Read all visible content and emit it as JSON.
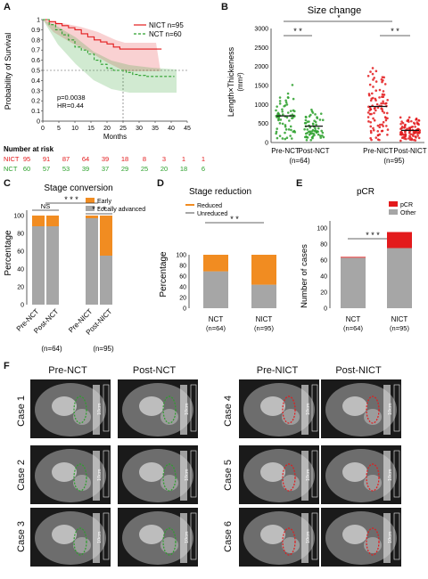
{
  "panels": {
    "A": "A",
    "B": "B",
    "C": "C",
    "D": "D",
    "E": "E",
    "F": "F"
  },
  "colors": {
    "nict": "#e31a1c",
    "nct": "#2ca02c",
    "early": "#f18c21",
    "locally_advanced": "#a6a6a6",
    "pcr": "#e31a1c",
    "other": "#a6a6a6"
  },
  "km": {
    "ylabel": "Probability of Survival",
    "xlabel": "Months",
    "legend_nict": "NICT n=95",
    "legend_nct": "NCT  n=60",
    "p_text": "p=0.0038",
    "hr_text": "HR=0.44",
    "yticks": [
      "0",
      "0.1",
      "0.2",
      "0.3",
      "0.4",
      "0.5",
      "0.6",
      "0.7",
      "0.8",
      "0.9",
      "1"
    ],
    "xticks": [
      "0",
      "5",
      "10",
      "15",
      "20",
      "25",
      "30",
      "35",
      "40",
      "45"
    ],
    "at_risk_title": "Number at risk",
    "risk_label_nict": "NICT",
    "risk_label_nct": "NCT",
    "risk_nict": [
      "95",
      "91",
      "87",
      "64",
      "39",
      "18",
      "8",
      "3",
      "1",
      "1"
    ],
    "risk_nct": [
      "60",
      "57",
      "53",
      "39",
      "37",
      "29",
      "25",
      "20",
      "18",
      "6"
    ]
  },
  "size_change": {
    "title": "Size change",
    "ylabel": "Length×Thickeness",
    "yunit": "(mm²)",
    "yticks": [
      "0",
      "500",
      "1000",
      "1500",
      "2000",
      "2500",
      "3000"
    ],
    "groups": [
      "Pre-NCT",
      "Post-NCT",
      "Pre-NICT",
      "Post-NICT"
    ],
    "n_nct": "(n=64)",
    "n_nict": "(n=95)",
    "sig_outer": "*",
    "sig_inner": "* *"
  },
  "stage_conversion": {
    "title": "Stage conversion",
    "ylabel": "Percentage",
    "yticks": [
      "0",
      "20",
      "40",
      "60",
      "80",
      "100"
    ],
    "legend_early": "Early",
    "legend_la": "Locally advanced",
    "groups": [
      "Pre-NCT",
      "Post-NCT",
      "Pre-NICT",
      "Post-NICT"
    ],
    "n_nct": "(n=64)",
    "n_nict": "(n=95)",
    "sig_ns": "NS",
    "sig_top": "* * *",
    "sig_right": "* * *"
  },
  "stage_reduction": {
    "title": "Stage reduction",
    "ylabel": "Percentage",
    "yticks": [
      "0",
      "20",
      "40",
      "60",
      "80",
      "100"
    ],
    "legend_reduced": "Reduced",
    "legend_unreduced": "Unreduced",
    "groups": [
      "NCT",
      "NICT"
    ],
    "n": [
      "(n=64)",
      "(n=95)"
    ],
    "sig": "* *"
  },
  "pcr": {
    "title": "pCR",
    "ylabel": "Number of cases",
    "yticks": [
      "0",
      "20",
      "40",
      "60",
      "80",
      "100"
    ],
    "legend_pcr": "pCR",
    "legend_other": "Other",
    "groups": [
      "NCT",
      "NICT"
    ],
    "n": [
      "(n=64)",
      "(n=95)"
    ],
    "sig": "* * *"
  },
  "ct_panel": {
    "col_titles": [
      "Pre-NCT",
      "Post-NCT",
      "Pre-NICT",
      "Post-NICT"
    ],
    "left_cases": [
      "Case 1",
      "Case 2",
      "Case 3"
    ],
    "right_cases": [
      "Case 4",
      "Case 5",
      "Case 6"
    ],
    "scale": "10cm"
  },
  "chart_data": [
    {
      "type": "line",
      "title": "",
      "xlabel": "Months",
      "ylabel": "Probability of Survival",
      "xlim": [
        0,
        45
      ],
      "ylim": [
        0,
        1
      ],
      "series": [
        {
          "name": "NICT n=95",
          "x": [
            0,
            2,
            4,
            6,
            8,
            10,
            12,
            14,
            16,
            18,
            20,
            22,
            24,
            26,
            30,
            35,
            37
          ],
          "y": [
            1,
            0.98,
            0.96,
            0.94,
            0.92,
            0.9,
            0.86,
            0.83,
            0.8,
            0.78,
            0.76,
            0.73,
            0.71,
            0.71,
            0.71,
            0.71,
            0.71
          ]
        },
        {
          "name": "NCT  n=60",
          "x": [
            0,
            2,
            4,
            6,
            8,
            10,
            12,
            14,
            16,
            18,
            20,
            22,
            24,
            26,
            28,
            30,
            32,
            35,
            38,
            41
          ],
          "y": [
            1,
            0.95,
            0.9,
            0.85,
            0.8,
            0.73,
            0.7,
            0.66,
            0.6,
            0.56,
            0.52,
            0.5,
            0.5,
            0.48,
            0.46,
            0.45,
            0.44,
            0.44,
            0.44,
            0.44
          ]
        }
      ]
    },
    {
      "type": "scatter",
      "title": "Size change",
      "ylabel": "Length×Thickeness",
      "ylim": [
        0,
        3000
      ],
      "categories": [
        "Pre-NCT",
        "Post-NCT",
        "Pre-NICT",
        "Post-NICT"
      ],
      "median": [
        700,
        430,
        950,
        320
      ]
    },
    {
      "type": "bar",
      "title": "Stage conversion",
      "ylabel": "Percentage",
      "categories": [
        "Pre-NCT",
        "Post-NCT",
        "Pre-NICT",
        "Post-NICT"
      ],
      "series": [
        {
          "name": "Locally advanced",
          "values": [
            88,
            88,
            97,
            55
          ]
        },
        {
          "name": "Early",
          "values": [
            12,
            12,
            3,
            45
          ]
        }
      ]
    },
    {
      "type": "bar",
      "title": "Stage reduction",
      "ylabel": "Percentage",
      "categories": [
        "NCT",
        "NICT"
      ],
      "series": [
        {
          "name": "Unreduced",
          "values": [
            69,
            44
          ]
        },
        {
          "name": "Reduced",
          "values": [
            31,
            56
          ]
        }
      ]
    },
    {
      "type": "bar",
      "title": "pCR",
      "ylabel": "Number of cases",
      "categories": [
        "NCT",
        "NICT"
      ],
      "series": [
        {
          "name": "Other",
          "values": [
            63,
            75
          ]
        },
        {
          "name": "pCR",
          "values": [
            1,
            20
          ]
        }
      ]
    }
  ]
}
